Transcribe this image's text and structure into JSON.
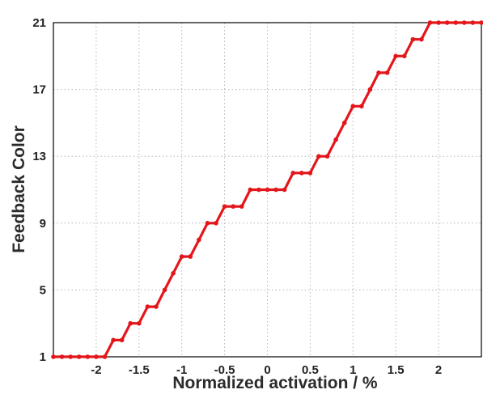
{
  "chart_data": {
    "type": "line",
    "title": "",
    "xlabel": "Normalized activation / %",
    "ylabel": "Feedback Color",
    "xlim": [
      -2.5,
      2.5
    ],
    "ylim": [
      1,
      21
    ],
    "xticks": [
      "-2",
      "-1.5",
      "-1",
      "-0.5",
      "0",
      "0.5",
      "1",
      "1.5",
      "2"
    ],
    "xtick_values": [
      -2,
      -1.5,
      -1,
      -0.5,
      0,
      0.5,
      1,
      1.5,
      2
    ],
    "yticks": [
      "1",
      "5",
      "9",
      "13",
      "17",
      "21"
    ],
    "ytick_values": [
      1,
      5,
      9,
      13,
      17,
      21
    ],
    "grid": true,
    "color": "#e3161b",
    "series": [
      {
        "x": [
          -2.5,
          -2.4,
          -2.3,
          -2.2,
          -2.1,
          -2.0,
          -1.9,
          -1.8,
          -1.7,
          -1.6,
          -1.5,
          -1.4,
          -1.3,
          -1.2,
          -1.1,
          -1.0,
          -0.9,
          -0.8,
          -0.7,
          -0.6,
          -0.5,
          -0.4,
          -0.3,
          -0.2,
          -0.1,
          0.0,
          0.1,
          0.2,
          0.3,
          0.4,
          0.5,
          0.6,
          0.7,
          0.8,
          0.9,
          1.0,
          1.1,
          1.2,
          1.3,
          1.4,
          1.5,
          1.6,
          1.7,
          1.8,
          1.9,
          2.0,
          2.1,
          2.2,
          2.3,
          2.4,
          2.5
        ],
        "y": [
          1,
          1,
          1,
          1,
          1,
          1,
          1,
          2,
          2,
          3,
          3,
          4,
          4,
          5,
          6,
          7,
          7,
          8,
          9,
          9,
          10,
          10,
          10,
          11,
          11,
          11,
          11,
          11,
          12,
          12,
          12,
          13,
          13,
          14,
          15,
          16,
          16,
          17,
          18,
          18,
          19,
          19,
          20,
          20,
          21,
          21,
          21,
          21,
          21,
          21,
          21
        ]
      }
    ]
  }
}
